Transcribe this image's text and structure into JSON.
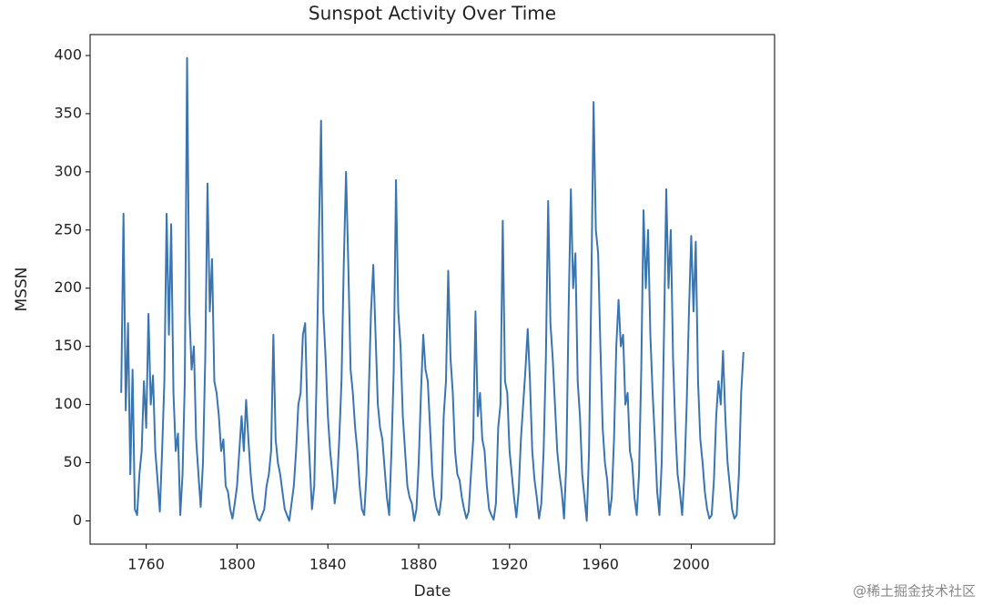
{
  "chart_data": {
    "type": "line",
    "title": "Sunspot Activity Over Time",
    "x_label": "Date",
    "y_label": "MSSN",
    "watermark": "@稀土掘金技术社区",
    "color": "#3a75b0",
    "xlim": [
      1735.3,
      2036.7
    ],
    "xticks": [
      1760,
      1800,
      1840,
      1880,
      1920,
      1960,
      2000
    ],
    "ylim": [
      -20,
      418
    ],
    "yticks": [
      0,
      50,
      100,
      150,
      200,
      250,
      300,
      350,
      400
    ],
    "grid": false,
    "x": [
      1749,
      1750,
      1751,
      1752,
      1753,
      1754,
      1755,
      1756,
      1757,
      1758,
      1759,
      1760,
      1761,
      1762,
      1763,
      1764,
      1765,
      1766,
      1767,
      1768,
      1769,
      1770,
      1771,
      1772,
      1773,
      1774,
      1775,
      1776,
      1777,
      1778,
      1779,
      1780,
      1781,
      1782,
      1783,
      1784,
      1785,
      1786,
      1787,
      1788,
      1789,
      1790,
      1791,
      1792,
      1793,
      1794,
      1795,
      1796,
      1797,
      1798,
      1799,
      1800,
      1801,
      1802,
      1803,
      1804,
      1805,
      1806,
      1807,
      1808,
      1809,
      1810,
      1811,
      1812,
      1813,
      1814,
      1815,
      1816,
      1817,
      1818,
      1819,
      1820,
      1821,
      1822,
      1823,
      1824,
      1825,
      1826,
      1827,
      1828,
      1829,
      1830,
      1831,
      1832,
      1833,
      1834,
      1835,
      1836,
      1837,
      1838,
      1839,
      1840,
      1841,
      1842,
      1843,
      1844,
      1845,
      1846,
      1847,
      1848,
      1849,
      1850,
      1851,
      1852,
      1853,
      1854,
      1855,
      1856,
      1857,
      1858,
      1859,
      1860,
      1861,
      1862,
      1863,
      1864,
      1865,
      1866,
      1867,
      1868,
      1869,
      1870,
      1871,
      1872,
      1873,
      1874,
      1875,
      1876,
      1877,
      1878,
      1879,
      1880,
      1881,
      1882,
      1883,
      1884,
      1885,
      1886,
      1887,
      1888,
      1889,
      1890,
      1891,
      1892,
      1893,
      1894,
      1895,
      1896,
      1897,
      1898,
      1899,
      1900,
      1901,
      1902,
      1903,
      1904,
      1905,
      1906,
      1907,
      1908,
      1909,
      1910,
      1911,
      1912,
      1913,
      1914,
      1915,
      1916,
      1917,
      1918,
      1919,
      1920,
      1921,
      1922,
      1923,
      1924,
      1925,
      1926,
      1927,
      1928,
      1929,
      1930,
      1931,
      1932,
      1933,
      1934,
      1935,
      1936,
      1937,
      1938,
      1939,
      1940,
      1941,
      1942,
      1943,
      1944,
      1945,
      1946,
      1947,
      1948,
      1949,
      1950,
      1951,
      1952,
      1953,
      1954,
      1955,
      1956,
      1957,
      1958,
      1959,
      1960,
      1961,
      1962,
      1963,
      1964,
      1965,
      1966,
      1967,
      1968,
      1969,
      1970,
      1971,
      1972,
      1973,
      1974,
      1975,
      1976,
      1977,
      1978,
      1979,
      1980,
      1981,
      1982,
      1983,
      1984,
      1985,
      1986,
      1987,
      1988,
      1989,
      1990,
      1991,
      1992,
      1993,
      1994,
      1995,
      1996,
      1997,
      1998,
      1999,
      2000,
      2001,
      2002,
      2003,
      2004,
      2005,
      2006,
      2007,
      2008,
      2009,
      2010,
      2011,
      2012,
      2013,
      2014,
      2015,
      2016,
      2017,
      2018,
      2019,
      2020,
      2021,
      2022,
      2023
    ],
    "values": [
      110,
      264,
      95,
      170,
      40,
      130,
      10,
      5,
      40,
      60,
      120,
      80,
      178,
      100,
      125,
      60,
      35,
      8,
      60,
      120,
      264,
      160,
      255,
      110,
      60,
      75,
      5,
      40,
      120,
      398,
      180,
      130,
      150,
      70,
      40,
      12,
      50,
      140,
      290,
      180,
      225,
      120,
      110,
      90,
      60,
      70,
      30,
      25,
      10,
      2,
      15,
      30,
      60,
      90,
      60,
      104,
      70,
      40,
      20,
      10,
      2,
      0,
      5,
      10,
      30,
      40,
      60,
      160,
      70,
      50,
      40,
      25,
      10,
      5,
      0,
      15,
      30,
      60,
      100,
      110,
      160,
      170,
      90,
      50,
      10,
      30,
      120,
      240,
      344,
      180,
      140,
      90,
      60,
      40,
      15,
      30,
      70,
      120,
      220,
      300,
      220,
      130,
      110,
      80,
      60,
      30,
      10,
      5,
      40,
      110,
      180,
      220,
      160,
      100,
      80,
      70,
      45,
      20,
      5,
      60,
      130,
      293,
      180,
      150,
      90,
      60,
      30,
      20,
      15,
      0,
      10,
      50,
      110,
      160,
      130,
      120,
      80,
      40,
      20,
      10,
      5,
      20,
      90,
      120,
      215,
      140,
      110,
      60,
      40,
      35,
      20,
      10,
      2,
      8,
      40,
      70,
      180,
      90,
      110,
      70,
      60,
      30,
      10,
      5,
      1,
      15,
      80,
      100,
      258,
      120,
      110,
      60,
      40,
      20,
      3,
      25,
      70,
      100,
      130,
      165,
      120,
      60,
      35,
      20,
      2,
      15,
      60,
      140,
      275,
      170,
      140,
      100,
      60,
      40,
      25,
      2,
      50,
      180,
      285,
      200,
      230,
      120,
      90,
      40,
      20,
      0,
      60,
      200,
      360,
      250,
      230,
      150,
      80,
      50,
      35,
      5,
      20,
      70,
      150,
      190,
      150,
      160,
      100,
      110,
      60,
      50,
      20,
      5,
      40,
      130,
      267,
      200,
      250,
      160,
      110,
      70,
      25,
      5,
      50,
      160,
      285,
      200,
      250,
      140,
      80,
      40,
      25,
      5,
      40,
      100,
      180,
      245,
      180,
      240,
      120,
      70,
      50,
      25,
      10,
      2,
      5,
      35,
      90,
      120,
      100,
      146,
      90,
      50,
      30,
      10,
      2,
      5,
      40,
      110,
      145
    ]
  }
}
